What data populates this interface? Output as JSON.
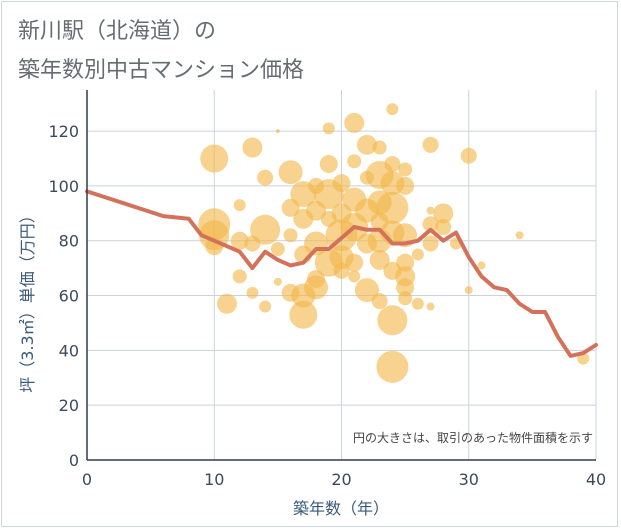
{
  "title_line1": "新川駅（北海道）の",
  "title_line2": "築年数別中古マンション価格",
  "chart_data": {
    "type": "scatter",
    "xlabel": "築年数（年）",
    "ylabel": "坪（3.3㎡）単価（万円）",
    "xlim": [
      0,
      40
    ],
    "ylim": [
      0,
      135
    ],
    "xticks": [
      0,
      10,
      20,
      30,
      40
    ],
    "yticks": [
      0,
      20,
      40,
      60,
      80,
      100,
      120
    ],
    "grid": true,
    "note": "円の大きさは、取引のあった物件面積を示す",
    "colors": {
      "bubble": "#f2b84b",
      "line": "#d4715b",
      "grid": "#c9d3dc"
    },
    "line": {
      "x": [
        0,
        2,
        4,
        6,
        8,
        9,
        10,
        11,
        12,
        13,
        14,
        15,
        16,
        17,
        18,
        19,
        20,
        21,
        22,
        23,
        24,
        25,
        26,
        27,
        28,
        29,
        30,
        31,
        32,
        33,
        34,
        35,
        36,
        37,
        38,
        39,
        40
      ],
      "y": [
        98,
        95,
        92,
        89,
        88,
        82,
        80,
        78,
        76,
        70,
        76,
        73,
        71,
        72,
        77,
        77,
        81,
        85,
        84,
        84,
        79,
        79,
        80,
        84,
        80,
        83,
        74,
        67,
        63,
        62,
        57,
        54,
        54,
        45,
        38,
        39,
        42
      ]
    },
    "bubbles": [
      {
        "x": 10,
        "y": 110,
        "r": 14
      },
      {
        "x": 10,
        "y": 86,
        "r": 16
      },
      {
        "x": 10,
        "y": 82,
        "r": 15
      },
      {
        "x": 10,
        "y": 78,
        "r": 9
      },
      {
        "x": 11,
        "y": 57,
        "r": 10
      },
      {
        "x": 12,
        "y": 93,
        "r": 6
      },
      {
        "x": 12,
        "y": 80,
        "r": 9
      },
      {
        "x": 12,
        "y": 67,
        "r": 7
      },
      {
        "x": 13,
        "y": 114,
        "r": 10
      },
      {
        "x": 13,
        "y": 61,
        "r": 6
      },
      {
        "x": 13,
        "y": 79,
        "r": 8
      },
      {
        "x": 14,
        "y": 103,
        "r": 8
      },
      {
        "x": 14,
        "y": 84,
        "r": 15
      },
      {
        "x": 14,
        "y": 56,
        "r": 6
      },
      {
        "x": 15,
        "y": 120,
        "r": 2
      },
      {
        "x": 15,
        "y": 65,
        "r": 4
      },
      {
        "x": 15,
        "y": 77,
        "r": 7
      },
      {
        "x": 16,
        "y": 105,
        "r": 12
      },
      {
        "x": 16,
        "y": 92,
        "r": 9
      },
      {
        "x": 16,
        "y": 82,
        "r": 7
      },
      {
        "x": 16,
        "y": 61,
        "r": 9
      },
      {
        "x": 17,
        "y": 97,
        "r": 13
      },
      {
        "x": 17,
        "y": 88,
        "r": 10
      },
      {
        "x": 17,
        "y": 75,
        "r": 9
      },
      {
        "x": 17,
        "y": 60,
        "r": 12
      },
      {
        "x": 17,
        "y": 53,
        "r": 14
      },
      {
        "x": 18,
        "y": 100,
        "r": 8
      },
      {
        "x": 18,
        "y": 91,
        "r": 10
      },
      {
        "x": 18,
        "y": 79,
        "r": 12
      },
      {
        "x": 18,
        "y": 66,
        "r": 9
      },
      {
        "x": 18,
        "y": 63,
        "r": 12
      },
      {
        "x": 19,
        "y": 121,
        "r": 6
      },
      {
        "x": 19,
        "y": 108,
        "r": 9
      },
      {
        "x": 19,
        "y": 97,
        "r": 15
      },
      {
        "x": 19,
        "y": 88,
        "r": 8
      },
      {
        "x": 19,
        "y": 72,
        "r": 14
      },
      {
        "x": 20,
        "y": 101,
        "r": 9
      },
      {
        "x": 20,
        "y": 90,
        "r": 10
      },
      {
        "x": 20,
        "y": 82,
        "r": 16
      },
      {
        "x": 20,
        "y": 74,
        "r": 12
      },
      {
        "x": 20,
        "y": 69,
        "r": 8
      },
      {
        "x": 21,
        "y": 123,
        "r": 10
      },
      {
        "x": 21,
        "y": 109,
        "r": 7
      },
      {
        "x": 21,
        "y": 95,
        "r": 12
      },
      {
        "x": 21,
        "y": 85,
        "r": 14
      },
      {
        "x": 21,
        "y": 72,
        "r": 9
      },
      {
        "x": 21,
        "y": 67,
        "r": 6
      },
      {
        "x": 22,
        "y": 115,
        "r": 10
      },
      {
        "x": 22,
        "y": 103,
        "r": 7
      },
      {
        "x": 22,
        "y": 91,
        "r": 12
      },
      {
        "x": 22,
        "y": 79,
        "r": 10
      },
      {
        "x": 22,
        "y": 62,
        "r": 12
      },
      {
        "x": 23,
        "y": 114,
        "r": 7
      },
      {
        "x": 23,
        "y": 104,
        "r": 14
      },
      {
        "x": 23,
        "y": 94,
        "r": 12
      },
      {
        "x": 23,
        "y": 87,
        "r": 9
      },
      {
        "x": 23,
        "y": 80,
        "r": 12
      },
      {
        "x": 23,
        "y": 73,
        "r": 10
      },
      {
        "x": 23,
        "y": 58,
        "r": 8
      },
      {
        "x": 24,
        "y": 128,
        "r": 6
      },
      {
        "x": 24,
        "y": 108,
        "r": 8
      },
      {
        "x": 24,
        "y": 101,
        "r": 12
      },
      {
        "x": 24,
        "y": 92,
        "r": 16
      },
      {
        "x": 24,
        "y": 83,
        "r": 12
      },
      {
        "x": 24,
        "y": 69,
        "r": 9
      },
      {
        "x": 24,
        "y": 51,
        "r": 15
      },
      {
        "x": 24,
        "y": 34,
        "r": 16
      },
      {
        "x": 25,
        "y": 106,
        "r": 7
      },
      {
        "x": 25,
        "y": 100,
        "r": 9
      },
      {
        "x": 25,
        "y": 82,
        "r": 12
      },
      {
        "x": 25,
        "y": 72,
        "r": 9
      },
      {
        "x": 25,
        "y": 67,
        "r": 10
      },
      {
        "x": 25,
        "y": 63,
        "r": 9
      },
      {
        "x": 25,
        "y": 59,
        "r": 7
      },
      {
        "x": 26,
        "y": 57,
        "r": 6
      },
      {
        "x": 26,
        "y": 75,
        "r": 6
      },
      {
        "x": 27,
        "y": 115,
        "r": 8
      },
      {
        "x": 27,
        "y": 91,
        "r": 4
      },
      {
        "x": 27,
        "y": 86,
        "r": 8
      },
      {
        "x": 27,
        "y": 79,
        "r": 8
      },
      {
        "x": 27,
        "y": 56,
        "r": 4
      },
      {
        "x": 28,
        "y": 90,
        "r": 10
      },
      {
        "x": 28,
        "y": 85,
        "r": 8
      },
      {
        "x": 29,
        "y": 79,
        "r": 6
      },
      {
        "x": 30,
        "y": 111,
        "r": 8
      },
      {
        "x": 30,
        "y": 62,
        "r": 4
      },
      {
        "x": 31,
        "y": 71,
        "r": 4
      },
      {
        "x": 34,
        "y": 82,
        "r": 4
      },
      {
        "x": 39,
        "y": 37,
        "r": 6
      }
    ]
  }
}
